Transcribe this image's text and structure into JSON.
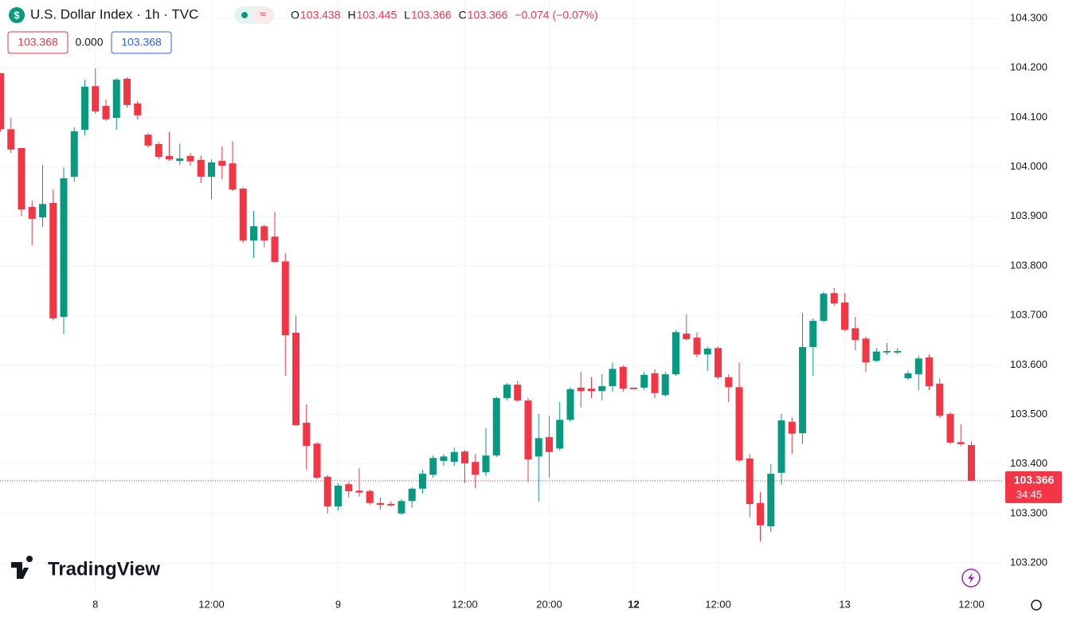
{
  "header": {
    "title": "U.S. Dollar Index · 1h · TVC",
    "ohlc": [
      {
        "key": "O",
        "value": "103.438"
      },
      {
        "key": "H",
        "value": "103.445"
      },
      {
        "key": "L",
        "value": "103.366"
      },
      {
        "key": "C",
        "value": "103.366"
      }
    ],
    "change": "−0.074 (−0.07%)",
    "boxes": [
      "103.368",
      "0.000",
      "103.368"
    ]
  },
  "logo": "TradingView",
  "chart_data": {
    "type": "candlestick",
    "up_color": "#089981",
    "down_color": "#f23645",
    "grid": true,
    "categories": [
      null,
      null,
      null,
      null,
      null,
      null,
      null,
      null,
      null,
      "8",
      null,
      null,
      null,
      null,
      null,
      null,
      null,
      null,
      null,
      null,
      "12:00",
      null,
      null,
      null,
      null,
      null,
      null,
      null,
      null,
      null,
      null,
      null,
      "9",
      null,
      null,
      null,
      null,
      null,
      null,
      null,
      null,
      null,
      null,
      null,
      "12:00",
      null,
      null,
      null,
      null,
      null,
      null,
      null,
      "20:00",
      null,
      null,
      null,
      null,
      null,
      null,
      null,
      "12",
      null,
      null,
      null,
      null,
      null,
      null,
      null,
      "12:00",
      null,
      null,
      null,
      null,
      null,
      null,
      null,
      null,
      null,
      null,
      null,
      "13",
      null,
      null,
      null,
      null,
      null,
      null,
      null,
      null,
      null,
      null,
      null,
      "12:00"
    ],
    "open": [
      104.189,
      104.076,
      104.038,
      103.919,
      103.898,
      103.927,
      103.697,
      103.98,
      104.075,
      104.163,
      104.123,
      104.099,
      104.178,
      104.128,
      104.065,
      104.046,
      104.022,
      104.012,
      104.022,
      104.014,
      103.98,
      104.012,
      104.007,
      103.956,
      103.851,
      103.88,
      103.859,
      103.809,
      103.665,
      103.483,
      103.441,
      103.374,
      103.314,
      103.359,
      103.346,
      103.345,
      103.321,
      103.319,
      103.3,
      103.325,
      103.35,
      103.378,
      103.406,
      103.404,
      103.425,
      103.404,
      103.383,
      103.417,
      103.533,
      103.56,
      103.528,
      103.415,
      103.454,
      103.431,
      103.489,
      103.554,
      103.552,
      103.547,
      103.557,
      103.596,
      103.554,
      103.554,
      103.583,
      103.539,
      103.581,
      103.663,
      103.655,
      103.621,
      103.634,
      103.575,
      103.555,
      103.411,
      103.321,
      103.274,
      103.382,
      103.485,
      103.462,
      103.636,
      103.689,
      103.745,
      103.726,
      103.674,
      103.653,
      103.608,
      103.625,
      103.625,
      103.573,
      103.581,
      103.615,
      103.562,
      103.501,
      103.444,
      103.438
    ],
    "high": [
      104.189,
      104.099,
      104.038,
      103.932,
      104.004,
      103.954,
      103.999,
      104.08,
      104.176,
      104.199,
      104.136,
      104.179,
      104.181,
      104.133,
      104.068,
      104.051,
      104.07,
      104.047,
      104.028,
      104.023,
      104.015,
      104.041,
      104.052,
      103.959,
      103.911,
      103.883,
      103.909,
      103.826,
      103.7,
      103.52,
      103.444,
      103.377,
      103.361,
      103.364,
      103.391,
      103.348,
      103.332,
      103.324,
      103.329,
      103.353,
      103.388,
      103.417,
      103.42,
      103.433,
      103.428,
      103.42,
      103.472,
      103.536,
      103.563,
      103.568,
      103.533,
      103.501,
      103.497,
      103.525,
      103.555,
      103.586,
      103.575,
      103.581,
      103.605,
      103.599,
      103.554,
      103.586,
      103.591,
      103.586,
      103.67,
      103.702,
      103.666,
      103.637,
      103.637,
      103.581,
      103.605,
      103.42,
      103.343,
      103.399,
      103.501,
      103.494,
      103.705,
      103.694,
      103.748,
      103.755,
      103.745,
      103.697,
      103.657,
      103.634,
      103.644,
      103.633,
      103.588,
      103.618,
      103.621,
      103.573,
      103.504,
      103.48,
      103.445
    ],
    "low": [
      104.071,
      104.028,
      103.9,
      103.842,
      103.879,
      103.69,
      103.662,
      103.97,
      104.064,
      104.107,
      104.093,
      104.075,
      104.12,
      104.096,
      104.039,
      104.015,
      104.012,
      104.004,
      104.002,
      103.967,
      103.935,
      103.975,
      103.951,
      103.846,
      103.816,
      103.838,
      103.806,
      103.578,
      103.477,
      103.388,
      103.369,
      103.3,
      103.306,
      103.332,
      103.334,
      103.317,
      103.308,
      103.314,
      103.297,
      103.312,
      103.34,
      103.372,
      103.396,
      103.396,
      103.361,
      103.351,
      103.375,
      103.414,
      103.528,
      103.525,
      103.364,
      103.324,
      103.372,
      103.427,
      103.485,
      103.514,
      103.533,
      103.528,
      103.546,
      103.546,
      103.551,
      103.549,
      103.533,
      103.536,
      103.578,
      103.649,
      103.615,
      103.588,
      103.571,
      103.525,
      103.404,
      103.292,
      103.243,
      103.263,
      103.358,
      103.42,
      103.44,
      103.578,
      103.686,
      103.719,
      103.668,
      103.629,
      103.586,
      103.605,
      103.62,
      103.621,
      103.57,
      103.549,
      103.549,
      103.493,
      103.44,
      103.436,
      103.366
    ],
    "close": [
      104.076,
      104.035,
      103.914,
      103.895,
      103.925,
      103.694,
      103.977,
      104.072,
      104.162,
      104.112,
      104.096,
      104.176,
      104.125,
      104.104,
      104.043,
      104.02,
      104.015,
      104.017,
      104.011,
      103.98,
      104.009,
      104.002,
      103.954,
      103.851,
      103.88,
      103.851,
      103.808,
      103.66,
      103.478,
      103.436,
      103.372,
      103.314,
      103.356,
      103.345,
      103.342,
      103.321,
      103.317,
      103.316,
      103.325,
      103.35,
      103.38,
      103.412,
      103.415,
      103.424,
      103.401,
      103.378,
      103.417,
      103.533,
      103.56,
      103.528,
      103.409,
      103.452,
      103.424,
      103.489,
      103.551,
      103.547,
      103.547,
      103.557,
      103.592,
      103.552,
      103.551,
      103.58,
      103.543,
      103.581,
      103.666,
      103.652,
      103.621,
      103.633,
      103.575,
      103.555,
      103.407,
      103.319,
      103.276,
      103.38,
      103.488,
      103.461,
      103.636,
      103.689,
      103.744,
      103.724,
      103.671,
      103.65,
      103.605,
      103.627,
      103.628,
      103.628,
      103.583,
      103.613,
      103.557,
      103.497,
      103.443,
      103.44,
      103.366
    ],
    "ylim": [
      103.139,
      104.337
    ],
    "yticks": [
      {
        "value": 103.2,
        "label": "103.200"
      },
      {
        "value": 103.3,
        "label": "103.300"
      },
      {
        "value": 103.4,
        "label": "103.400"
      },
      {
        "value": 103.5,
        "label": "103.500"
      },
      {
        "value": 103.6,
        "label": "103.600"
      },
      {
        "value": 103.7,
        "label": "103.700"
      },
      {
        "value": 103.8,
        "label": "103.800"
      },
      {
        "value": 103.9,
        "label": "103.900"
      },
      {
        "value": 104.0,
        "label": "104.000"
      },
      {
        "value": 104.1,
        "label": "104.100"
      },
      {
        "value": 104.2,
        "label": "104.200"
      },
      {
        "value": 104.3,
        "label": "104.300"
      }
    ],
    "last_price": 103.366,
    "countdown": "34:45"
  }
}
